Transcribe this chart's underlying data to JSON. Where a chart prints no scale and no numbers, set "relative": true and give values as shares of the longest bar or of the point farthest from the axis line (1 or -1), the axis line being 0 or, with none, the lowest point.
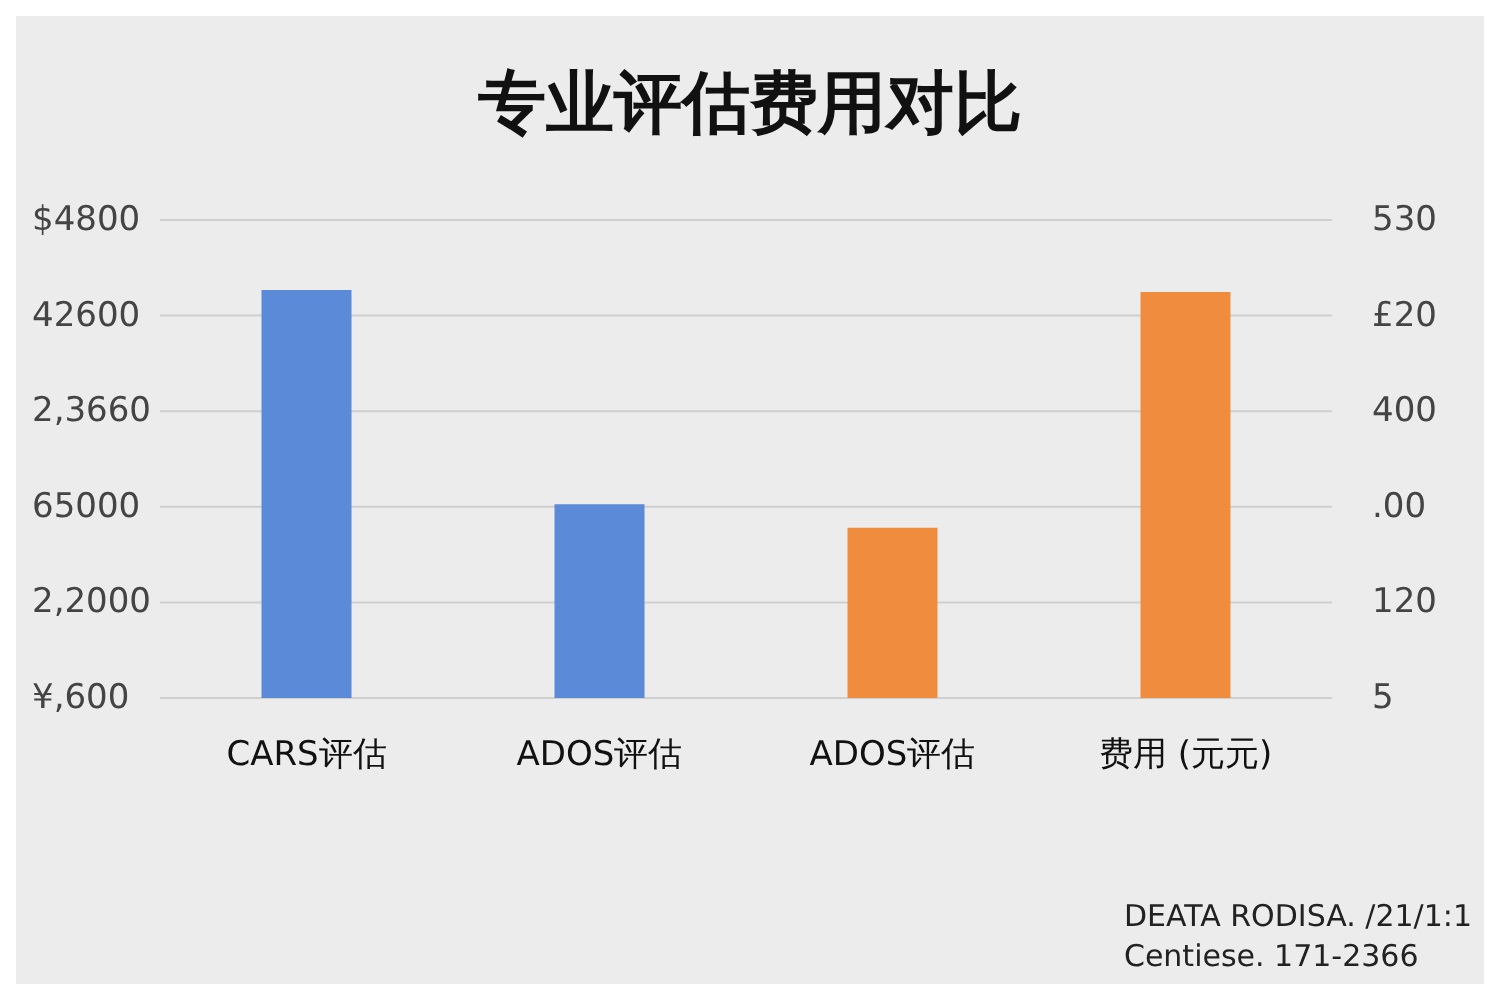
{
  "chart_data": {
    "type": "bar",
    "title": "专业评估费用对比",
    "categories": [
      "CARS评估",
      "ADOS评估",
      "ADOS评估",
      "费用 (元元)"
    ],
    "values": [
      1,
      0.475,
      0.417,
      0.995
    ],
    "colors": [
      "#5b8ad8",
      "#5b8ad8",
      "#ef8c3e",
      "#ef8c3e"
    ],
    "relative": true,
    "ylabel": "$4800\n42600\n2,3660\n65000\n2,2000\n¥,600",
    "y2label": "530\n£20\n400\n.00\n120\n5",
    "grid": "y",
    "annotations": [
      "DEATA RODISA. /21/1:1",
      "Centiese. 171-2366"
    ]
  }
}
